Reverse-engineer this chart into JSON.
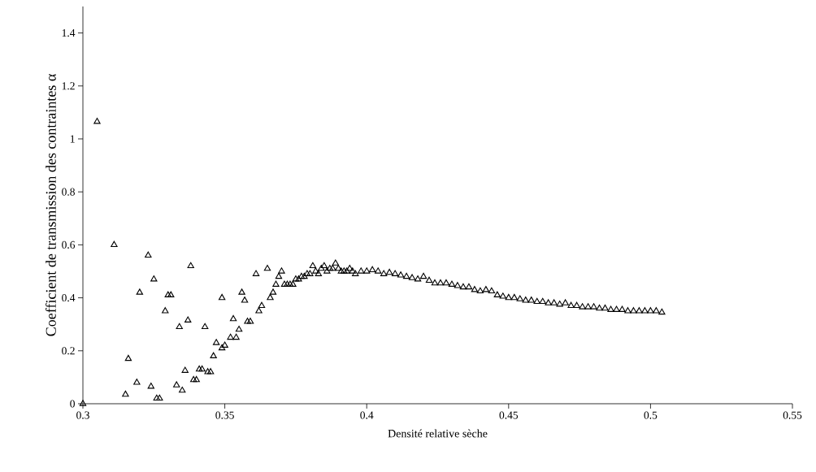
{
  "chart_data": {
    "type": "scatter",
    "xlabel": "Densité relative sèche",
    "ylabel": "Coefficient de transmission des contraintes α",
    "x": [
      0.3,
      0.305,
      0.311,
      0.315,
      0.316,
      0.319,
      0.32,
      0.323,
      0.324,
      0.325,
      0.326,
      0.327,
      0.329,
      0.33,
      0.331,
      0.333,
      0.334,
      0.335,
      0.336,
      0.337,
      0.338,
      0.339,
      0.34,
      0.341,
      0.342,
      0.343,
      0.344,
      0.345,
      0.346,
      0.347,
      0.349,
      0.349,
      0.35,
      0.352,
      0.353,
      0.354,
      0.355,
      0.356,
      0.357,
      0.358,
      0.359,
      0.361,
      0.362,
      0.363,
      0.365,
      0.366,
      0.367,
      0.368,
      0.369,
      0.37,
      0.371,
      0.372,
      0.373,
      0.374,
      0.375,
      0.376,
      0.377,
      0.378,
      0.379,
      0.38,
      0.381,
      0.382,
      0.383,
      0.384,
      0.385,
      0.386,
      0.387,
      0.388,
      0.389,
      0.39,
      0.391,
      0.392,
      0.393,
      0.394,
      0.395,
      0.396,
      0.398,
      0.4,
      0.402,
      0.404,
      0.406,
      0.408,
      0.41,
      0.412,
      0.414,
      0.416,
      0.418,
      0.42,
      0.422,
      0.424,
      0.426,
      0.428,
      0.43,
      0.432,
      0.434,
      0.436,
      0.438,
      0.44,
      0.442,
      0.444,
      0.446,
      0.448,
      0.45,
      0.452,
      0.454,
      0.456,
      0.458,
      0.46,
      0.462,
      0.464,
      0.466,
      0.468,
      0.47,
      0.472,
      0.474,
      0.476,
      0.478,
      0.48,
      0.482,
      0.484,
      0.486,
      0.488,
      0.49,
      0.492,
      0.494,
      0.496,
      0.498,
      0.5,
      0.502,
      0.504
    ],
    "series": [
      {
        "color": "#000000",
        "values": [
          0,
          1.065,
          0.6,
          0.035,
          0.17,
          0.08,
          0.42,
          0.56,
          0.065,
          0.47,
          0.02,
          0.02,
          0.35,
          0.41,
          0.41,
          0.07,
          0.29,
          0.05,
          0.125,
          0.315,
          0.52,
          0.09,
          0.09,
          0.13,
          0.13,
          0.29,
          0.12,
          0.12,
          0.18,
          0.23,
          0.4,
          0.21,
          0.22,
          0.25,
          0.32,
          0.25,
          0.28,
          0.42,
          0.39,
          0.31,
          0.31,
          0.49,
          0.35,
          0.37,
          0.51,
          0.4,
          0.42,
          0.45,
          0.48,
          0.5,
          0.45,
          0.45,
          0.45,
          0.45,
          0.47,
          0.47,
          0.48,
          0.48,
          0.49,
          0.49,
          0.52,
          0.5,
          0.49,
          0.51,
          0.52,
          0.5,
          0.51,
          0.51,
          0.53,
          0.51,
          0.5,
          0.5,
          0.5,
          0.51,
          0.5,
          0.49,
          0.5,
          0.5,
          0.505,
          0.5,
          0.49,
          0.495,
          0.49,
          0.485,
          0.48,
          0.475,
          0.47,
          0.48,
          0.465,
          0.455,
          0.455,
          0.455,
          0.45,
          0.445,
          0.44,
          0.44,
          0.43,
          0.425,
          0.43,
          0.425,
          0.41,
          0.405,
          0.4,
          0.4,
          0.395,
          0.39,
          0.39,
          0.385,
          0.385,
          0.38,
          0.38,
          0.375,
          0.38,
          0.37,
          0.37,
          0.365,
          0.365,
          0.365,
          0.36,
          0.36,
          0.355,
          0.355,
          0.355,
          0.35,
          0.35,
          0.35,
          0.35,
          0.35,
          0.35,
          0.345
        ]
      }
    ],
    "marker": "triangle",
    "xlim": [
      0.3,
      0.55
    ],
    "xticks": [
      0.3,
      0.35,
      0.4,
      0.45,
      0.5,
      0.55
    ],
    "ylim": [
      0,
      1.5
    ],
    "yticks": [
      0,
      0.2,
      0.4,
      0.6,
      0.8,
      1,
      1.2,
      1.4
    ]
  }
}
